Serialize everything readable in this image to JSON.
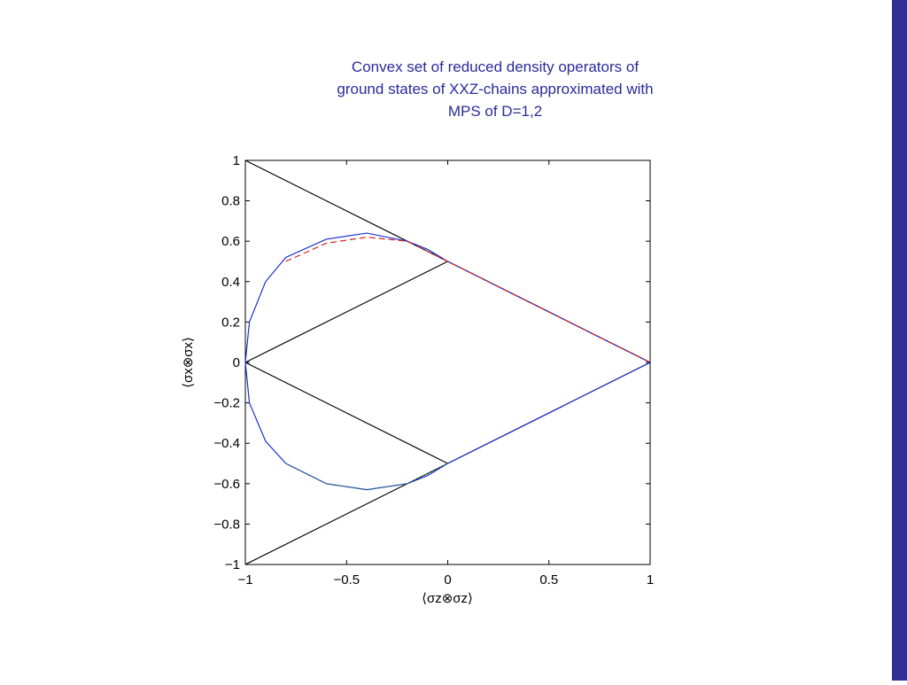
{
  "chart_data": {
    "type": "line",
    "title": [
      "Convex set of reduced density operators of",
      "ground states of XXZ-chains approximated with",
      "MPS of D=1,2"
    ],
    "xlabel": "⟨σz⊗σz⟩",
    "ylabel": "⟨σx⊗σx⟩",
    "xlim": [
      -1,
      1
    ],
    "ylim": [
      -1,
      1
    ],
    "xticks": [
      {
        "value": -1,
        "label": "−1"
      },
      {
        "value": -0.5,
        "label": "−0.5"
      },
      0,
      0.5,
      1
    ],
    "yticks": [
      {
        "value": -1,
        "label": "−1"
      },
      {
        "value": -0.8,
        "label": "−0.8"
      },
      {
        "value": -0.6,
        "label": "−0.6"
      },
      {
        "value": -0.4,
        "label": "−0.4"
      },
      {
        "value": -0.2,
        "label": "−0.2"
      },
      0,
      0.2,
      0.4,
      0.6,
      0.8,
      1
    ],
    "series": [
      {
        "color": "#000000",
        "style": "solid",
        "x": [
          -1,
          1,
          -1,
          null,
          -1,
          0,
          null,
          -1,
          0
        ],
        "y": [
          1,
          0,
          -1,
          null,
          0,
          0.5,
          null,
          0,
          -0.5
        ]
      },
      {
        "color": "#1f2fd0",
        "style": "solid",
        "x": [
          -1,
          -0.98,
          -0.9,
          -0.8,
          -0.6,
          -0.4,
          -0.2,
          -0.1,
          0,
          1,
          0,
          -0.1,
          -0.2,
          -0.4,
          -0.6,
          -0.8,
          -0.9,
          -0.98,
          -1
        ],
        "y": [
          0,
          0.2,
          0.4,
          0.52,
          0.61,
          0.64,
          0.6,
          0.56,
          0.5,
          0,
          -0.5,
          -0.56,
          -0.6,
          -0.63,
          -0.6,
          -0.5,
          -0.39,
          -0.2,
          0
        ]
      },
      {
        "color": "#d42020",
        "style": "dashed",
        "x": [
          -0.8,
          -0.6,
          -0.4,
          -0.2,
          0,
          1
        ],
        "y": [
          0.5,
          0.59,
          0.62,
          0.6,
          0.5,
          0
        ]
      },
      {
        "color": "#20a020",
        "style": "dotted",
        "x": [
          -0.8,
          -0.6,
          -0.4,
          -0.2,
          0
        ],
        "y": [
          -0.5,
          -0.6,
          -0.63,
          -0.6,
          -0.5
        ]
      }
    ]
  }
}
